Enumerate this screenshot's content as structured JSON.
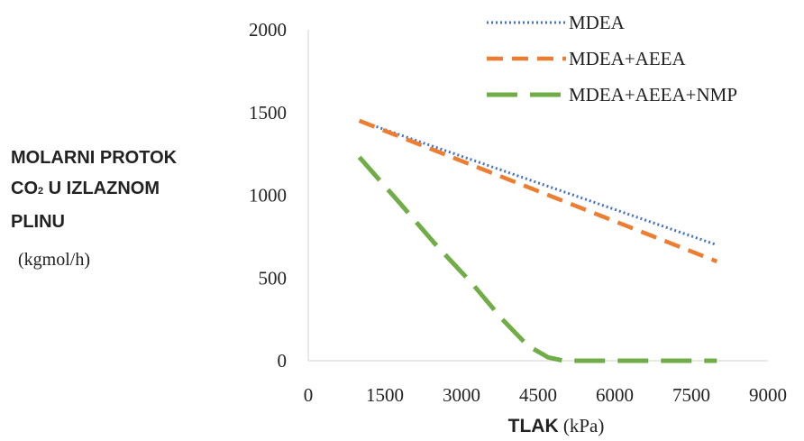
{
  "chart_data": {
    "type": "line",
    "title": "",
    "ylabel": {
      "line1": "MOLARNI PROTOK",
      "line2_prefix": "CO",
      "line2_sub": "2",
      "line2_suffix": " U IZLAZNOM",
      "line3": "PLINU",
      "unit": "(kgmol/h)"
    },
    "xlabel": {
      "bold": "TLAK",
      "unit": " (kPa)"
    },
    "xlim": [
      0,
      9000
    ],
    "ylim": [
      0,
      2000
    ],
    "xticks": [
      0,
      1500,
      3000,
      4500,
      6000,
      7500,
      9000
    ],
    "yticks": [
      0,
      500,
      1000,
      1500,
      2000
    ],
    "grid": false,
    "legend_position": "top-right",
    "series": [
      {
        "name": "MDEA",
        "style": "dotted",
        "color": "#4472C4",
        "x": [
          1000,
          8000
        ],
        "y": [
          1450,
          700
        ]
      },
      {
        "name": "MDEA+AEEA",
        "style": "dashed",
        "color": "#ED7D31",
        "x": [
          1000,
          8000
        ],
        "y": [
          1450,
          600
        ]
      },
      {
        "name": "MDEA+AEEA+NMP",
        "style": "long-dashed",
        "color": "#70AD47",
        "x": [
          1000,
          1800,
          2500,
          3200,
          3800,
          4300,
          4700,
          5000,
          5500,
          8000
        ],
        "y": [
          1230,
          950,
          700,
          470,
          250,
          90,
          20,
          0,
          0,
          0
        ]
      }
    ]
  }
}
